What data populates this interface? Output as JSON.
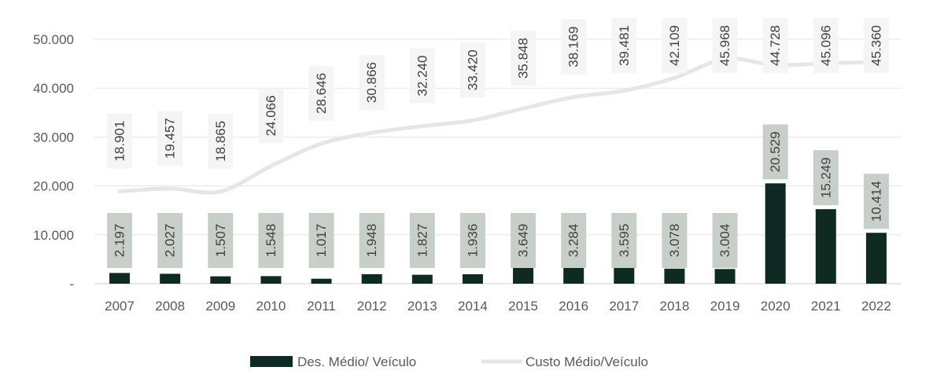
{
  "chart_data": {
    "type": "bar",
    "categories": [
      "2007",
      "2008",
      "2009",
      "2010",
      "2011",
      "2012",
      "2013",
      "2014",
      "2015",
      "2016",
      "2017",
      "2018",
      "2019",
      "2020",
      "2021",
      "2022"
    ],
    "series": [
      {
        "name": "Des. Médio/ Veículo",
        "type": "bar",
        "color": "#0e2a22",
        "label_box_color": "#c8cfc9",
        "values": [
          2197,
          2027,
          1507,
          1548,
          1017,
          1948,
          1827,
          1936,
          3649,
          3284,
          3595,
          3078,
          3004,
          20529,
          15249,
          10414
        ],
        "labels": [
          "2.197",
          "2.027",
          "1.507",
          "1.548",
          "1.017",
          "1.948",
          "1.827",
          "1.936",
          "3.649",
          "3.284",
          "3.595",
          "3.078",
          "3.004",
          "20.529",
          "15.249",
          "10.414"
        ]
      },
      {
        "name": "Custo Médio/Veículo",
        "type": "line",
        "color": "#e6e6e6",
        "label_box_color": "#f5f5f5",
        "values": [
          18901,
          19457,
          18865,
          24066,
          28646,
          30866,
          32240,
          33420,
          35848,
          38169,
          39481,
          42109,
          45968,
          44728,
          45096,
          45360
        ],
        "labels": [
          "18.901",
          "19.457",
          "18.865",
          "24.066",
          "28.646",
          "30.866",
          "32.240",
          "33.420",
          "35.848",
          "38.169",
          "39.481",
          "42.109",
          "45.968",
          "44.728",
          "45.096",
          "45.360"
        ]
      }
    ],
    "ylim": [
      0,
      50000
    ],
    "yticks": [
      0,
      10000,
      20000,
      30000,
      40000,
      50000
    ],
    "ytick_labels": [
      "-",
      "10.000",
      "20.000",
      "30.000",
      "40.000",
      "50.000"
    ],
    "grid": true,
    "legend_position": "bottom",
    "title": "",
    "xlabel": "",
    "ylabel": ""
  }
}
